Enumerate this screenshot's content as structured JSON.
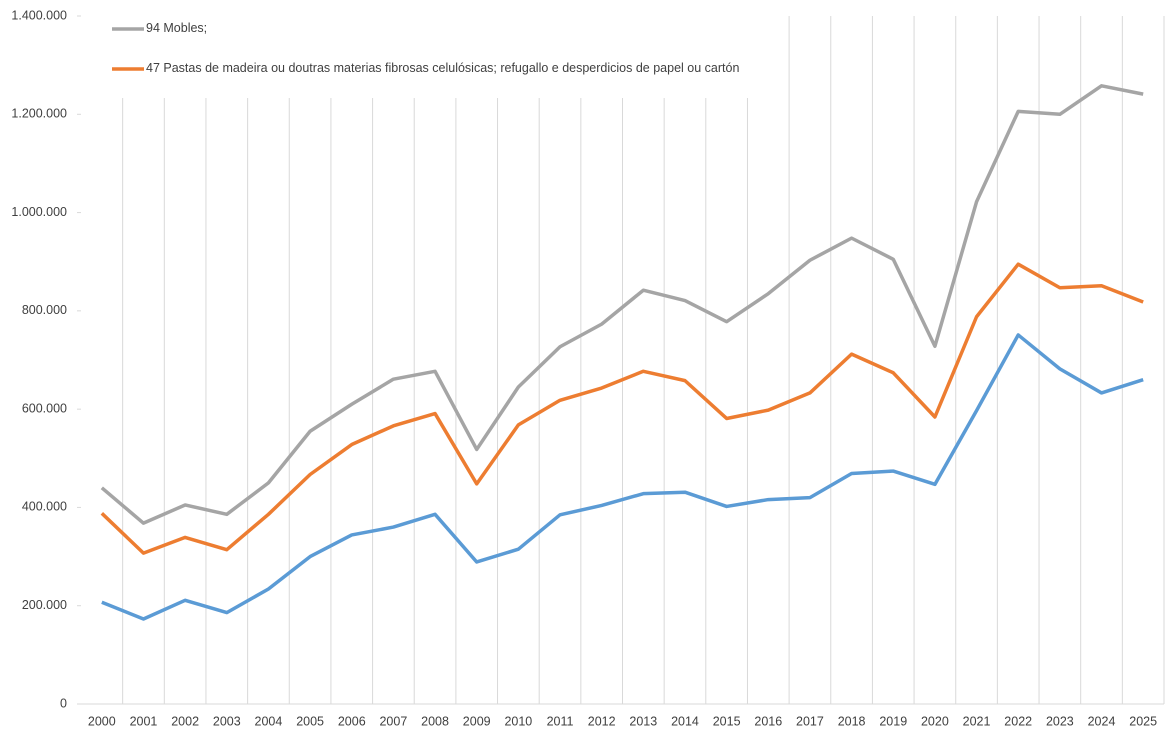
{
  "chart_data": {
    "type": "line",
    "categories": [
      "2000",
      "2001",
      "2002",
      "2003",
      "2004",
      "2005",
      "2006",
      "2007",
      "2008",
      "2009",
      "2010",
      "2011",
      "2012",
      "2013",
      "2014",
      "2015",
      "2016",
      "2017",
      "2018",
      "2019",
      "2020",
      "2021",
      "2022",
      "2023",
      "2024",
      "2025"
    ],
    "series": [
      {
        "name": "94 Mobles;",
        "color": "#a5a5a5",
        "values": [
          440000,
          368000,
          405000,
          386000,
          450000,
          555000,
          610000,
          661000,
          677000,
          518000,
          645000,
          727000,
          773000,
          842000,
          821000,
          778000,
          835000,
          903000,
          948000,
          905000,
          728000,
          1022000,
          1206000,
          1200000,
          1258000,
          1241000
        ]
      },
      {
        "name": "47 Pastas de madeira ou doutras materias fibrosas celulósicas; refugallo e desperdicios de papel ou cartón",
        "color": "#ed7d31",
        "values": [
          388000,
          307000,
          339000,
          314000,
          386000,
          467000,
          528000,
          566000,
          591000,
          448000,
          568000,
          618000,
          643000,
          677000,
          658000,
          581000,
          598000,
          633000,
          712000,
          674000,
          584000,
          788000,
          895000,
          847000,
          851000,
          818000
        ]
      },
      {
        "color": "#5b9bd5",
        "values": [
          207000,
          173000,
          211000,
          186000,
          234000,
          300000,
          344000,
          360000,
          386000,
          289000,
          315000,
          385000,
          404000,
          428000,
          431000,
          402000,
          416000,
          420000,
          469000,
          474000,
          447000,
          597000,
          751000,
          682000,
          633000,
          660000
        ]
      }
    ],
    "ylim": [
      0,
      1400000
    ],
    "yticks": [
      0,
      {
        "value": 200000,
        "label": "200.000"
      },
      {
        "value": 400000,
        "label": "400.000"
      },
      {
        "value": 600000,
        "label": "600.000"
      },
      {
        "value": 800000,
        "label": "800.000"
      },
      {
        "value": 1000000,
        "label": "1.000.000"
      },
      {
        "value": 1200000,
        "label": "1.200.000"
      },
      {
        "value": 1400000,
        "label": "1.400.000"
      }
    ],
    "grid": "x",
    "legend": "top-left"
  }
}
